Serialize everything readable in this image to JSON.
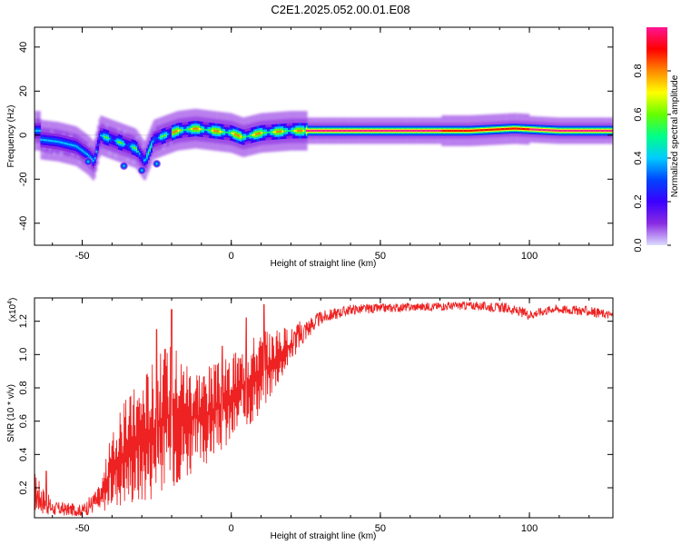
{
  "title": "C2E1.2025.052.00.01.E08",
  "colors": {
    "snr_line": "#ee2222",
    "colorbar_stops": [
      "#dcdcff",
      "#8a2be2",
      "#3b00ff",
      "#0044ff",
      "#00ccff",
      "#00ff88",
      "#66ff00",
      "#ffff00",
      "#ff8800",
      "#ff0000",
      "#ff1493"
    ]
  },
  "chart_data": [
    {
      "type": "heatmap",
      "xlabel": "Height of straight line (km)",
      "ylabel": "Frequency (Hz)",
      "xlim": [
        -66,
        128
      ],
      "ylim": [
        -50,
        49
      ],
      "x_ticks": [
        -50,
        0,
        50,
        100
      ],
      "y_ticks": [
        -40,
        -20,
        0,
        20,
        40
      ],
      "colorbar": {
        "label": "Normalized spectral amplitude",
        "range": [
          0,
          1
        ],
        "ticks": [
          "0.0",
          "0.2",
          "0.4",
          "0.6",
          "0.8"
        ]
      },
      "ridge": [
        {
          "x": -64,
          "y": -2
        },
        {
          "x": -58,
          "y": -3
        },
        {
          "x": -52,
          "y": -5
        },
        {
          "x": -48,
          "y": -9
        },
        {
          "x": -46,
          "y": -12
        },
        {
          "x": -44,
          "y": 0
        },
        {
          "x": -40,
          "y": -2
        },
        {
          "x": -36,
          "y": -4
        },
        {
          "x": -32,
          "y": -6
        },
        {
          "x": -29,
          "y": -12
        },
        {
          "x": -26,
          "y": -2
        },
        {
          "x": -22,
          "y": 0
        },
        {
          "x": -18,
          "y": 2
        },
        {
          "x": -12,
          "y": 3
        },
        {
          "x": -6,
          "y": 2
        },
        {
          "x": 0,
          "y": 1
        },
        {
          "x": 4,
          "y": -1
        },
        {
          "x": 10,
          "y": 1
        },
        {
          "x": 20,
          "y": 2
        },
        {
          "x": 40,
          "y": 2
        },
        {
          "x": 60,
          "y": 2
        },
        {
          "x": 80,
          "y": 2
        },
        {
          "x": 95,
          "y": 3
        },
        {
          "x": 110,
          "y": 2
        },
        {
          "x": 128,
          "y": 2
        }
      ],
      "blobs": [
        {
          "x": -36,
          "y": -14
        },
        {
          "x": -30,
          "y": -16
        },
        {
          "x": -48,
          "y": -12
        },
        {
          "x": -25,
          "y": -13
        }
      ]
    },
    {
      "type": "line",
      "xlabel": "Height of straight line (km)",
      "ylabel": "SNR (10 * v/v)",
      "y_multiplier": "(x10",
      "y_multiplier_exp": "4",
      "xlim": [
        -66,
        128
      ],
      "ylim": [
        0.02,
        1.34
      ],
      "x_ticks": [
        -50,
        0,
        50,
        100
      ],
      "y_ticks": [
        0.2,
        0.4,
        0.6,
        0.8,
        1.0,
        1.2
      ],
      "envelope": [
        {
          "x": -66,
          "lo": 0.05,
          "hi": 0.3
        },
        {
          "x": -60,
          "lo": 0.03,
          "hi": 0.12
        },
        {
          "x": -50,
          "lo": 0.03,
          "hi": 0.1
        },
        {
          "x": -44,
          "lo": 0.05,
          "hi": 0.22
        },
        {
          "x": -40,
          "lo": 0.08,
          "hi": 0.55
        },
        {
          "x": -35,
          "lo": 0.1,
          "hi": 0.75
        },
        {
          "x": -30,
          "lo": 0.1,
          "hi": 0.9
        },
        {
          "x": -25,
          "lo": 0.15,
          "hi": 1.0
        },
        {
          "x": -20,
          "lo": 0.2,
          "hi": 1.1
        },
        {
          "x": -15,
          "lo": 0.25,
          "hi": 1.0
        },
        {
          "x": -10,
          "lo": 0.3,
          "hi": 0.95
        },
        {
          "x": -5,
          "lo": 0.4,
          "hi": 0.95
        },
        {
          "x": 0,
          "lo": 0.45,
          "hi": 1.0
        },
        {
          "x": 5,
          "lo": 0.55,
          "hi": 1.1
        },
        {
          "x": 10,
          "lo": 0.65,
          "hi": 1.15
        },
        {
          "x": 15,
          "lo": 0.8,
          "hi": 1.15
        },
        {
          "x": 20,
          "lo": 0.95,
          "hi": 1.18
        },
        {
          "x": 25,
          "lo": 1.08,
          "hi": 1.22
        },
        {
          "x": 30,
          "lo": 1.18,
          "hi": 1.26
        },
        {
          "x": 40,
          "lo": 1.24,
          "hi": 1.3
        },
        {
          "x": 60,
          "lo": 1.26,
          "hi": 1.31
        },
        {
          "x": 80,
          "lo": 1.27,
          "hi": 1.32
        },
        {
          "x": 92,
          "lo": 1.25,
          "hi": 1.31
        },
        {
          "x": 100,
          "lo": 1.21,
          "hi": 1.27
        },
        {
          "x": 108,
          "lo": 1.25,
          "hi": 1.3
        },
        {
          "x": 120,
          "lo": 1.23,
          "hi": 1.29
        },
        {
          "x": 128,
          "lo": 1.21,
          "hi": 1.26
        }
      ],
      "spikes": [
        {
          "x": -20,
          "y": 1.27
        },
        {
          "x": 11,
          "y": 1.3
        },
        {
          "x": 5,
          "y": 1.22
        },
        {
          "x": -25,
          "y": 1.15
        },
        {
          "x": -3,
          "y": 1.05
        },
        {
          "x": -62,
          "y": 0.3
        }
      ]
    }
  ]
}
